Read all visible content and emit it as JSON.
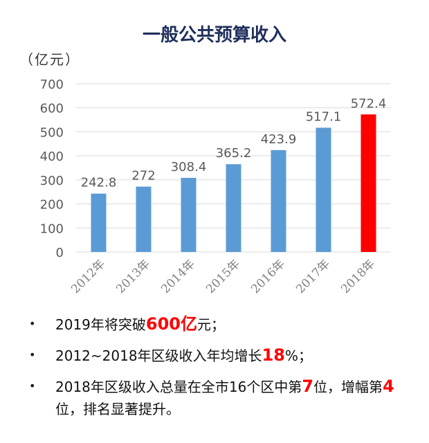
{
  "title": "一般公共预算收入",
  "unit": "（亿元）",
  "colors": {
    "bar": "#5b9bd5",
    "highlight": "#ff0000",
    "grid": "#d9d9d9",
    "axis_text": "#595959"
  },
  "chart_data": {
    "type": "bar",
    "categories": [
      "2012年",
      "2013年",
      "2014年",
      "2015年",
      "2016年",
      "2017年",
      "2018年"
    ],
    "values": [
      242.8,
      272,
      308.4,
      365.2,
      423.9,
      517.1,
      572.4
    ],
    "value_labels": [
      "242.8",
      "272",
      "308.4",
      "365.2",
      "423.9",
      "517.1",
      "572.4"
    ],
    "highlight_index": 6,
    "ylim": [
      0,
      700
    ],
    "yticks": [
      0,
      100,
      200,
      300,
      400,
      500,
      600,
      700
    ],
    "grid": true
  },
  "bullets": [
    {
      "parts": [
        {
          "t": "2019年将突破"
        },
        {
          "t": "600亿",
          "hl": true
        },
        {
          "t": "元；"
        }
      ]
    },
    {
      "parts": [
        {
          "t": "2012~2018年区级收入年均增长"
        },
        {
          "t": "18",
          "hl": true
        },
        {
          "t": "%；"
        }
      ]
    },
    {
      "parts": [
        {
          "t": "2018年区级收入总量在全市16个区中第"
        },
        {
          "t": "7",
          "hl": true
        },
        {
          "t": "位，增幅第"
        },
        {
          "t": "4",
          "hl": true
        },
        {
          "t": "位，排名显著提升。"
        }
      ]
    }
  ],
  "bullet_symbol": "•"
}
